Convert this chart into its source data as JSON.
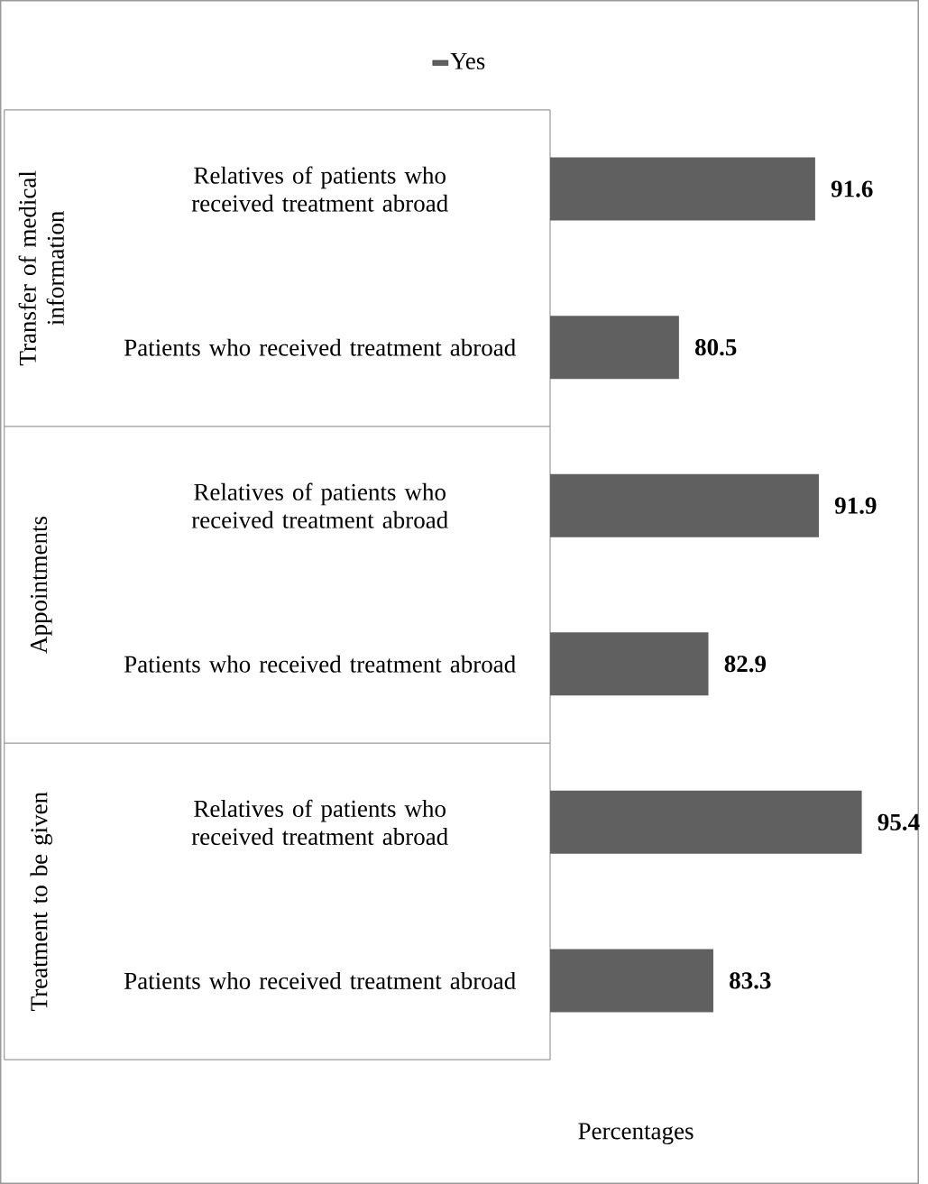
{
  "chart_data": {
    "type": "bar",
    "orientation": "horizontal",
    "categories": [
      "Relatives of patients who received treatment abroad",
      "Patients who received treatment abroad",
      "Relatives of patients who received treatment abroad",
      "Patients who received treatment abroad",
      "Relatives of patients who received treatment abroad",
      "Patients who received treatment abroad"
    ],
    "series": [
      {
        "name": "Yes",
        "color": "#606060",
        "values": [
          91.6,
          80.5,
          91.9,
          82.9,
          95.4,
          83.3
        ]
      }
    ],
    "xlim": [
      70,
      100
    ],
    "xlabel": "Percentages",
    "data_labels": true,
    "legend": "top",
    "tick_labels": "y",
    "grid": false,
    "annotations": [
      "Transfer of medical information",
      "Appointments",
      "Treatment to be given"
    ]
  }
}
